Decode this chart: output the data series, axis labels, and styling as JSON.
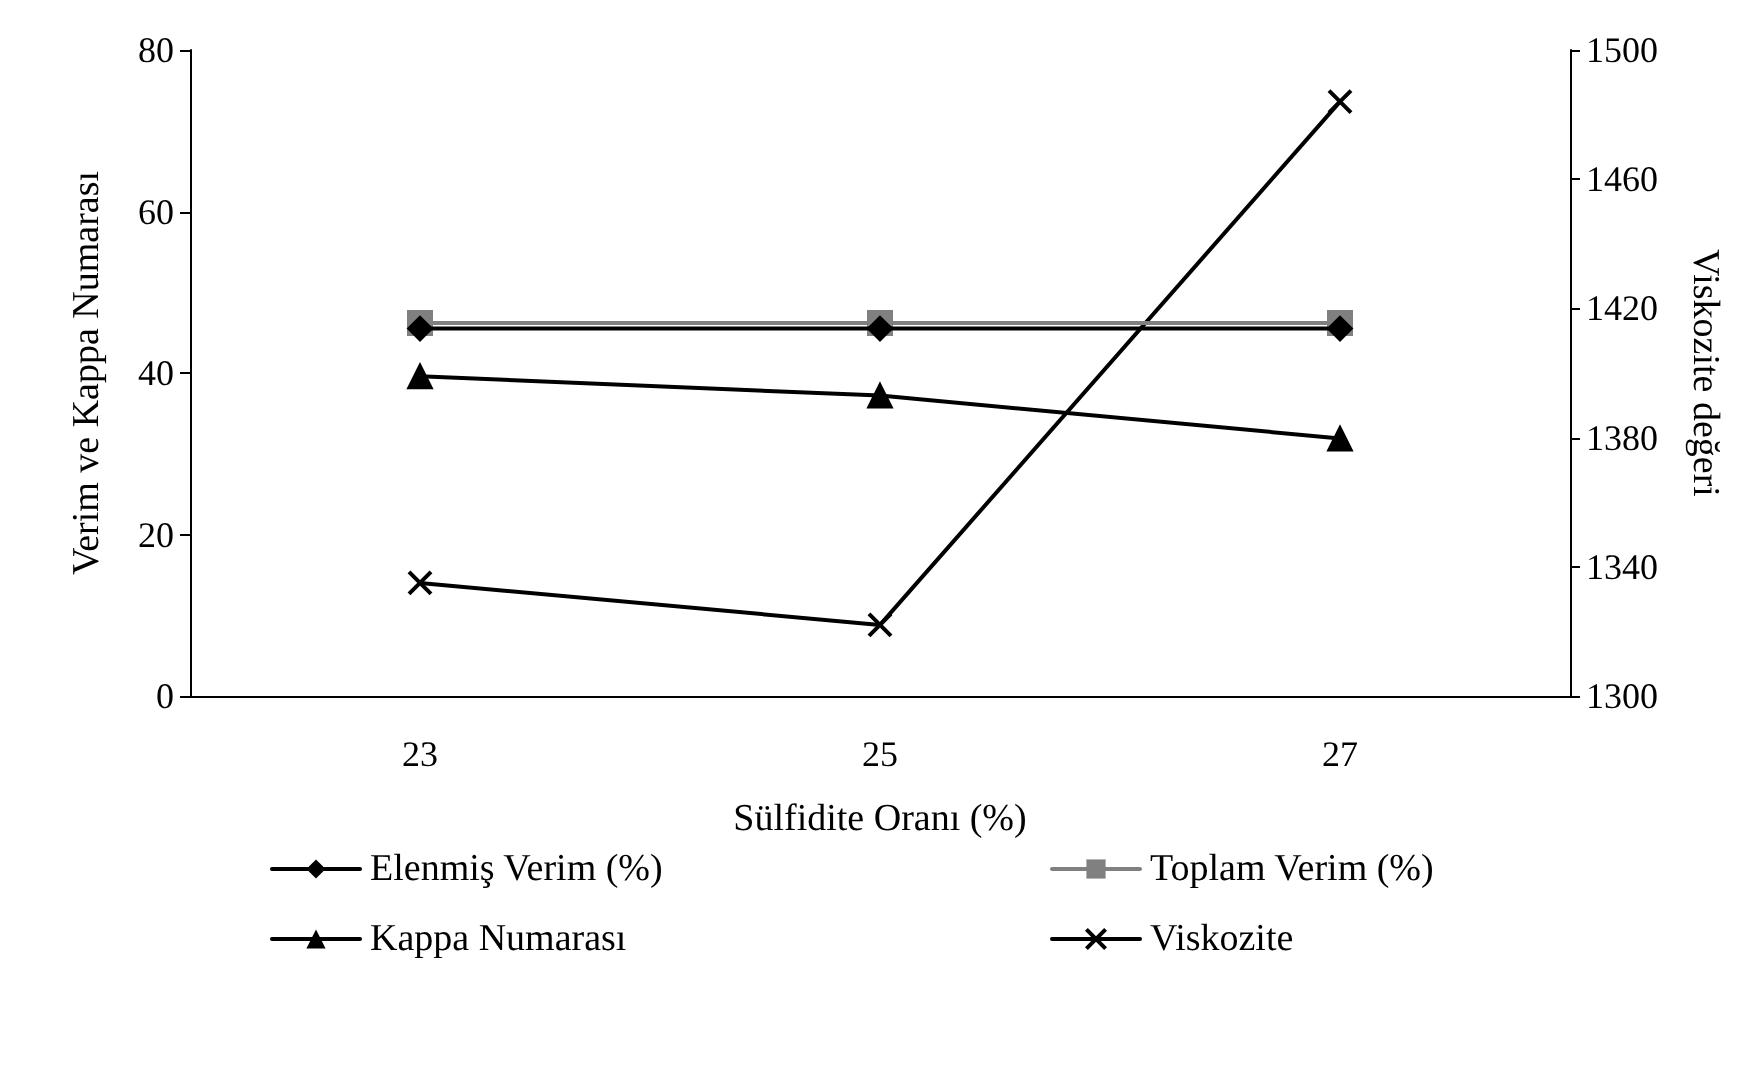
{
  "chart_data": {
    "type": "line",
    "xlabel": "Sülfidite Oranı (%)",
    "ylabel": "Verim ve Kappa Numarası",
    "y2label": "Viskozite değeri",
    "categories": [
      "23",
      "25",
      "27"
    ],
    "series": [
      {
        "name": "Elenmiş Verim (%)",
        "color": "#000000",
        "marker": "diamond",
        "values": [
          45.5,
          45.5,
          45.5
        ]
      },
      {
        "name": "Toplam Verim (%)",
        "color": "#808080",
        "marker": "square",
        "values": [
          46.2,
          46.2,
          46.2
        ]
      },
      {
        "name": "Kappa Numarası",
        "color": "#000000",
        "marker": "triangle",
        "values": [
          39.6,
          37.2,
          31.9
        ]
      },
      {
        "name": "Viskozite",
        "color": "#000000",
        "marker": "cross",
        "axis": "y2",
        "values": [
          1335,
          1322,
          1484
        ]
      }
    ],
    "ylim": [
      0,
      80
    ],
    "yticks": [
      0,
      20,
      40,
      60,
      80
    ],
    "y2lim": [
      1300,
      1500
    ],
    "y2ticks": [
      1300,
      1340,
      1380,
      1420,
      1460,
      1500
    ],
    "grid": false,
    "legend": "bottom"
  }
}
